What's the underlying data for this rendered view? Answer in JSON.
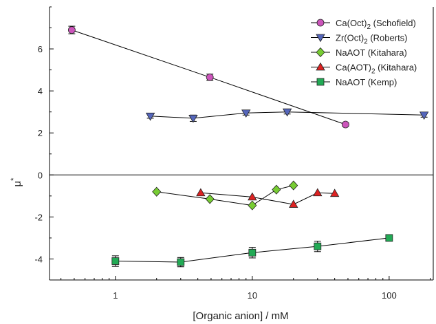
{
  "chart_data": {
    "type": "scatter",
    "title": "",
    "xlabel": "[Organic anion] / mM",
    "ylabel_main": "μ",
    "ylabel_sup": "*",
    "xscale": "log",
    "xlim": [
      0.33,
      210
    ],
    "ylim": [
      -5,
      8
    ],
    "x_ticks": [
      1,
      10,
      100
    ],
    "x_tick_labels": [
      "1",
      "10",
      "100"
    ],
    "y_ticks": [
      -4,
      -2,
      0,
      2,
      4,
      6
    ],
    "y_tick_labels": [
      "-4",
      "-2",
      "0",
      "2",
      "4",
      "6"
    ],
    "zero_line": true,
    "grid": false,
    "legend_position": "top-right",
    "series": [
      {
        "name_main": "Ca(Oct)",
        "name_sub": "2",
        "name_tail": " (Schofield)",
        "marker": "circle",
        "color": "#cc55bb",
        "x": [
          0.48,
          4.9,
          48
        ],
        "y": [
          6.9,
          4.65,
          2.4
        ],
        "err": [
          0.18,
          0.15,
          0.08
        ]
      },
      {
        "name_main": "Zr(Oct)",
        "name_sub": "2",
        "name_tail": " (Roberts)",
        "marker": "triangle-down",
        "color": "#5566bb",
        "x": [
          1.8,
          3.7,
          9,
          18,
          180
        ],
        "y": [
          2.8,
          2.7,
          2.95,
          3.0,
          2.85
        ],
        "err": [
          0.1,
          0.15,
          0.1,
          0.1,
          0.1
        ]
      },
      {
        "name_main": "NaAOT",
        "name_sub": "",
        "name_tail": " (Kitahara)",
        "marker": "diamond",
        "color": "#77cc33",
        "x": [
          2,
          4.9,
          10,
          15,
          20
        ],
        "y": [
          -0.8,
          -1.15,
          -1.45,
          -0.7,
          -0.5
        ],
        "err": [
          0,
          0,
          0,
          0,
          0
        ]
      },
      {
        "name_main": "Ca(AOT)",
        "name_sub": "2",
        "name_tail": " (Kitahara)",
        "marker": "triangle-up",
        "color": "#dd2222",
        "x": [
          4.2,
          10,
          20,
          30,
          40
        ],
        "y": [
          -0.85,
          -1.05,
          -1.4,
          -0.85,
          -0.88
        ],
        "err": [
          0,
          0,
          0,
          0,
          0
        ]
      },
      {
        "name_main": "NaAOT",
        "name_sub": "",
        "name_tail": " (Kemp)",
        "marker": "square",
        "color": "#22aa55",
        "x": [
          1,
          3,
          10,
          30,
          100
        ],
        "y": [
          -4.1,
          -4.15,
          -3.7,
          -3.4,
          -3.0
        ],
        "err": [
          0.25,
          0.22,
          0.25,
          0.25,
          0.05
        ]
      }
    ]
  }
}
